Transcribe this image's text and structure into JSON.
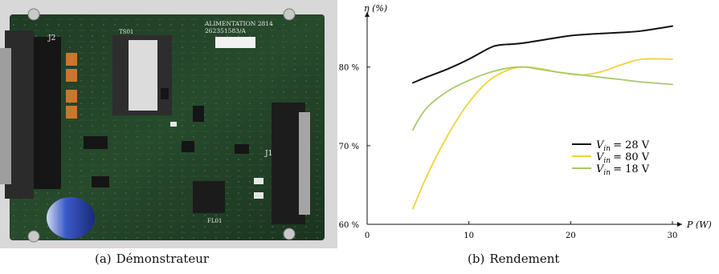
{
  "figure_a": {
    "tag": "(a)",
    "caption": "Démonstrateur",
    "board_prints": {
      "connector_left": "J2",
      "connector_right": "J1",
      "module_label": "ALIMENTATION 2814",
      "module_ref": "262351583/A",
      "transformer": "TS01",
      "filter": "FL01"
    }
  },
  "figure_b": {
    "tag": "(b)",
    "caption": "Rendement"
  },
  "chart_data": {
    "type": "line",
    "ylabel": "η (%)",
    "xlabel": "P (W)",
    "xlim": [
      0,
      30
    ],
    "ylim": [
      60,
      87
    ],
    "xticks": [
      0,
      10,
      20,
      30
    ],
    "yticks": [
      60,
      70,
      80
    ],
    "ytick_labels": [
      "60 %",
      "70 %",
      "80 %"
    ],
    "grid": false,
    "legend_position": "right",
    "colors": {
      "vin28": "#111111",
      "vin80": "#f3d23a",
      "vin18": "#a9c96a"
    },
    "series": [
      {
        "name": "V_in = 28 V",
        "legend_main": "V",
        "legend_sub": "in",
        "legend_value": "= 28  V",
        "color": "#111111",
        "x": [
          4.5,
          6,
          8,
          10,
          12,
          13,
          15,
          18,
          20,
          22,
          25,
          27,
          30
        ],
        "y": [
          78.0,
          78.8,
          79.8,
          81.0,
          82.4,
          82.8,
          83.0,
          83.6,
          84.0,
          84.2,
          84.4,
          84.6,
          85.2
        ]
      },
      {
        "name": "V_in = 80 V",
        "legend_main": "V",
        "legend_sub": "in",
        "legend_value": "= 80  V",
        "color": "#f3d23a",
        "x": [
          4.5,
          6,
          8,
          10,
          12,
          14,
          15.5,
          17,
          19,
          21,
          23,
          25,
          27,
          30
        ],
        "y": [
          62.0,
          66.5,
          71.5,
          75.5,
          78.3,
          79.7,
          80.0,
          79.8,
          79.3,
          79.0,
          79.4,
          80.3,
          81.0,
          81.0
        ]
      },
      {
        "name": "V_in = 18 V",
        "legend_main": "V",
        "legend_sub": "in",
        "legend_value": "= 18  V",
        "color": "#a9c96a",
        "x": [
          4.5,
          5,
          6,
          8,
          10,
          12,
          14,
          15.5,
          17,
          19,
          21,
          23,
          25,
          27,
          30
        ],
        "y": [
          72.0,
          73.2,
          75.0,
          77.0,
          78.3,
          79.3,
          79.9,
          80.0,
          79.7,
          79.3,
          79.0,
          78.7,
          78.4,
          78.1,
          77.8
        ]
      }
    ]
  }
}
